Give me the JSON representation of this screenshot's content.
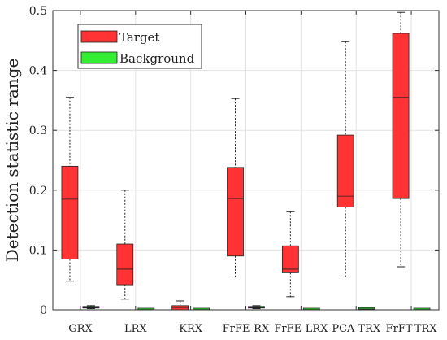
{
  "chart_data": {
    "type": "box",
    "ylabel": "Detection statistic range",
    "xlabel": "",
    "ylim": [
      0,
      0.5
    ],
    "yticks": [
      "0",
      "0.1",
      "0.2",
      "0.3",
      "0.4",
      "0.5"
    ],
    "grid": true,
    "legend_position": "top-left",
    "categories": [
      "GRX",
      "LRX",
      "KRX",
      "FrFE-RX",
      "FrFE-LRX",
      "PCA-TRX",
      "FrFT-TRX"
    ],
    "series": [
      {
        "name": "Target",
        "color": "#ff3333",
        "boxes": [
          {
            "min": 0.048,
            "q1": 0.085,
            "median": 0.185,
            "q3": 0.24,
            "max": 0.355
          },
          {
            "min": 0.018,
            "q1": 0.042,
            "median": 0.068,
            "q3": 0.11,
            "max": 0.2
          },
          {
            "min": 0.0,
            "q1": 0.0,
            "median": 0.004,
            "q3": 0.007,
            "max": 0.015
          },
          {
            "min": 0.055,
            "q1": 0.09,
            "median": 0.186,
            "q3": 0.238,
            "max": 0.353
          },
          {
            "min": 0.022,
            "q1": 0.062,
            "median": 0.068,
            "q3": 0.107,
            "max": 0.164
          },
          {
            "min": 0.055,
            "q1": 0.172,
            "median": 0.19,
            "q3": 0.292,
            "max": 0.448
          },
          {
            "min": 0.072,
            "q1": 0.186,
            "median": 0.355,
            "q3": 0.462,
            "max": 0.497
          }
        ]
      },
      {
        "name": "Background",
        "color": "#33ee33",
        "boxes": [
          {
            "min": 0.002,
            "q1": 0.003,
            "median": 0.004,
            "q3": 0.005,
            "max": 0.007
          },
          {
            "min": 0.0,
            "q1": 0.0,
            "median": 0.0005,
            "q3": 0.001,
            "max": 0.001
          },
          {
            "min": 0.0,
            "q1": 0.0,
            "median": 0.0005,
            "q3": 0.001,
            "max": 0.001
          },
          {
            "min": 0.002,
            "q1": 0.003,
            "median": 0.004,
            "q3": 0.005,
            "max": 0.007
          },
          {
            "min": 0.0,
            "q1": 0.0,
            "median": 0.0005,
            "q3": 0.001,
            "max": 0.001
          },
          {
            "min": 0.0,
            "q1": 0.001,
            "median": 0.0015,
            "q3": 0.002,
            "max": 0.003
          },
          {
            "min": 0.0,
            "q1": 0.0,
            "median": 0.0005,
            "q3": 0.001,
            "max": 0.001
          }
        ]
      }
    ]
  }
}
